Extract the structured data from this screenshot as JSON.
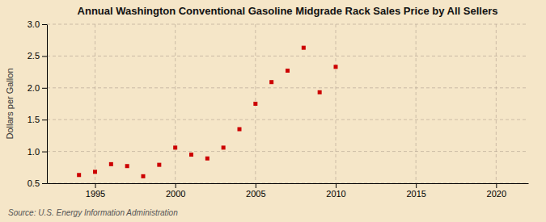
{
  "chart_data": {
    "type": "scatter",
    "title": "Annual Washington Conventional Gasoline Midgrade Rack Sales Price by All Sellers",
    "ylabel": "Dollars per Gallon",
    "source": "Source: U.S. Energy Information Administration",
    "x": [
      1994,
      1995,
      1996,
      1997,
      1998,
      1999,
      2000,
      2001,
      2002,
      2003,
      2004,
      2005,
      2006,
      2007,
      2008,
      2009,
      2010
    ],
    "values": [
      0.63,
      0.68,
      0.8,
      0.77,
      0.61,
      0.79,
      1.06,
      0.95,
      0.89,
      1.06,
      1.35,
      1.75,
      2.09,
      2.27,
      2.63,
      1.93,
      2.33
    ],
    "color": "#cc0000",
    "marker": "square",
    "xlim": [
      1992,
      2022
    ],
    "ylim": [
      0.5,
      3.0
    ],
    "xticks": [
      1995,
      2000,
      2005,
      2010,
      2015,
      2020
    ],
    "yticks": [
      0.5,
      {
        "value": 1.0,
        "label": "1.0"
      },
      1.5,
      {
        "value": 2.0,
        "label": "2.0"
      },
      2.5,
      {
        "value": 3.0,
        "label": "3.0"
      }
    ],
    "grid": true
  }
}
